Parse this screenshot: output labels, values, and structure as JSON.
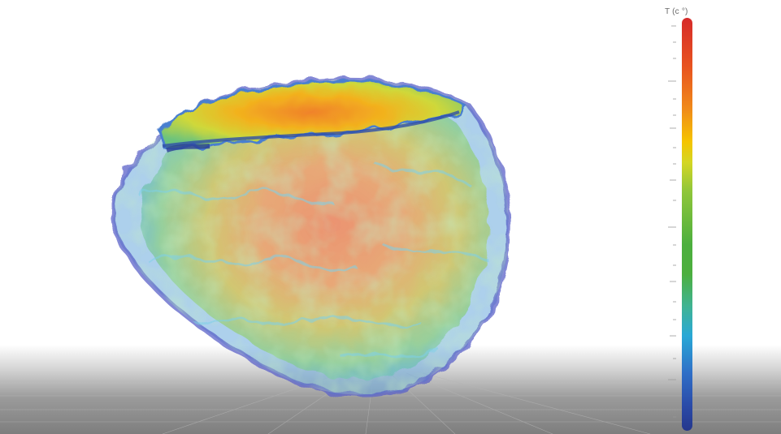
{
  "legend": {
    "title": "T (c °)",
    "colors": [
      "#d62a2a",
      "#e8541f",
      "#f08a1a",
      "#f5c400",
      "#8fc63a",
      "#4caf3e",
      "#3fb394",
      "#29a8d6",
      "#2f6fc7",
      "#25378c"
    ]
  },
  "scene": {
    "object": "3d-thermal-volume-render",
    "floor": "perspective-grid",
    "background": "#ffffff"
  }
}
